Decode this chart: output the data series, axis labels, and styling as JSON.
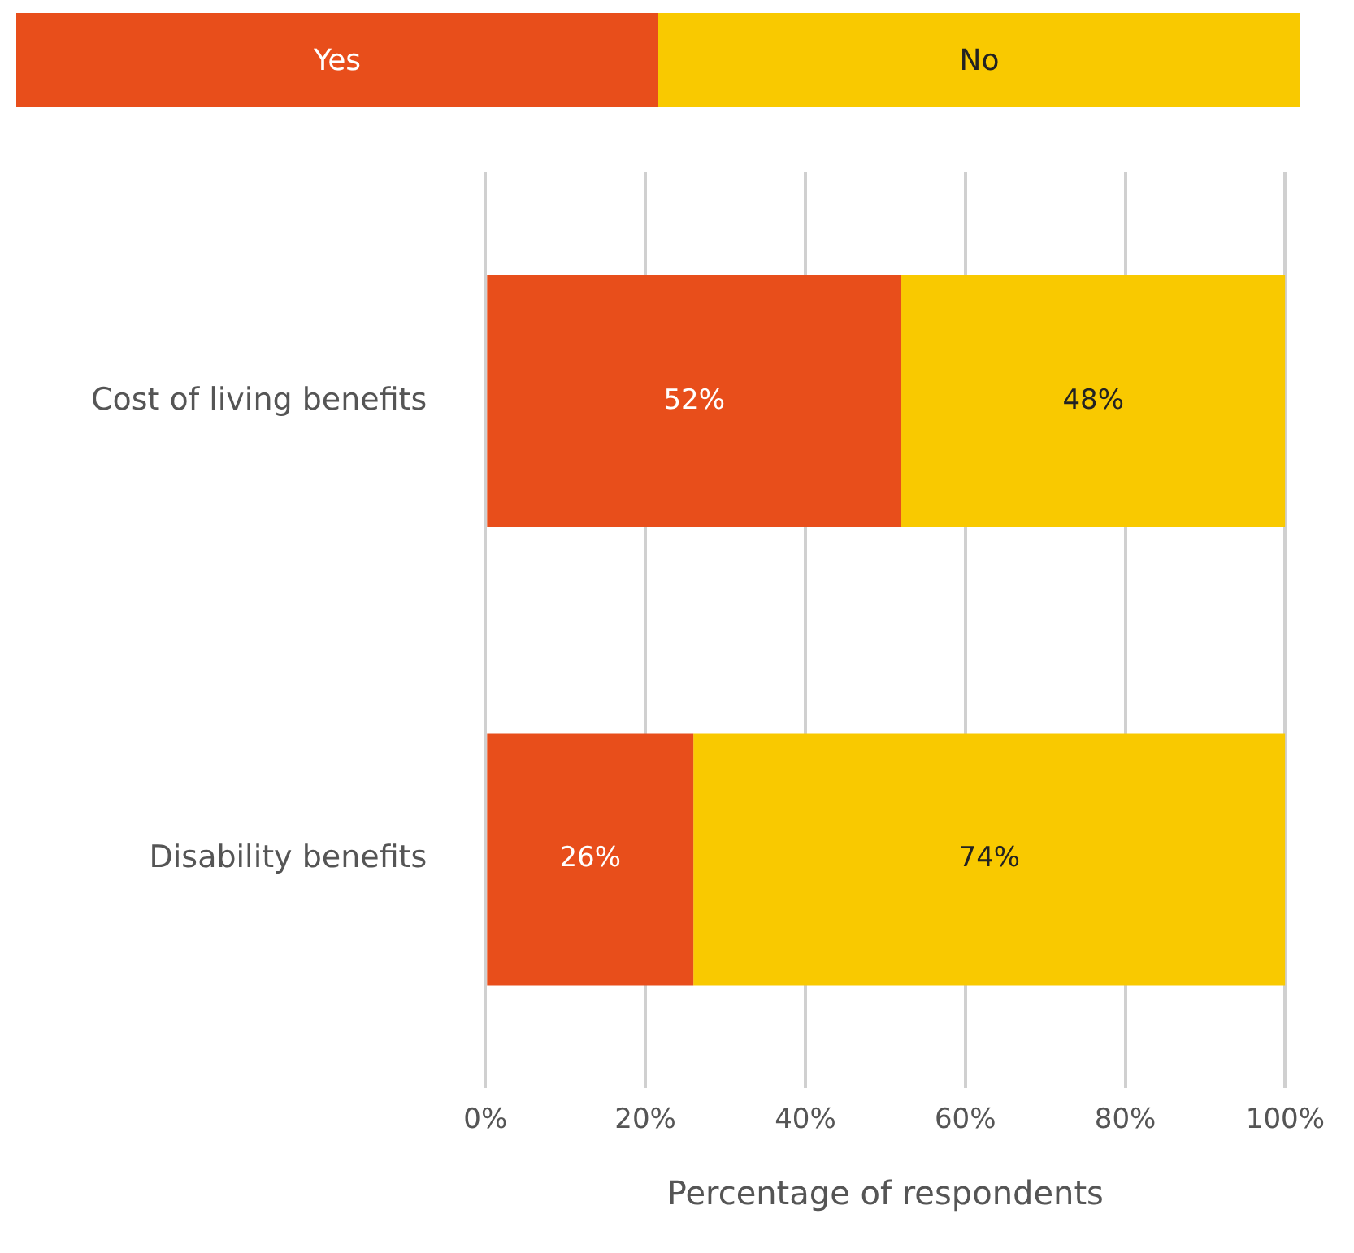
{
  "chart_data": {
    "type": "bar",
    "orientation": "horizontal",
    "stacked": true,
    "categories": [
      "Cost of living benefits",
      "Disability benefits"
    ],
    "series": [
      {
        "name": "Yes",
        "color": "#e84e1b",
        "values": [
          52,
          26
        ]
      },
      {
        "name": "No",
        "color": "#f9c900",
        "values": [
          48,
          74
        ]
      }
    ],
    "xlim": [
      0,
      100
    ],
    "xticks": [
      {
        "value": 0,
        "label": "0%"
      },
      {
        "value": 20,
        "label": "20%"
      },
      {
        "value": 40,
        "label": "40%"
      },
      {
        "value": 60,
        "label": "60%"
      },
      {
        "value": 80,
        "label": "80%"
      },
      {
        "value": 100,
        "label": "100%"
      }
    ],
    "xlabel": "Percentage of respondents",
    "grid": "x",
    "legend": "top",
    "value_labels": [
      [
        "52%",
        "26%"
      ],
      [
        "48%",
        "74%"
      ]
    ]
  }
}
